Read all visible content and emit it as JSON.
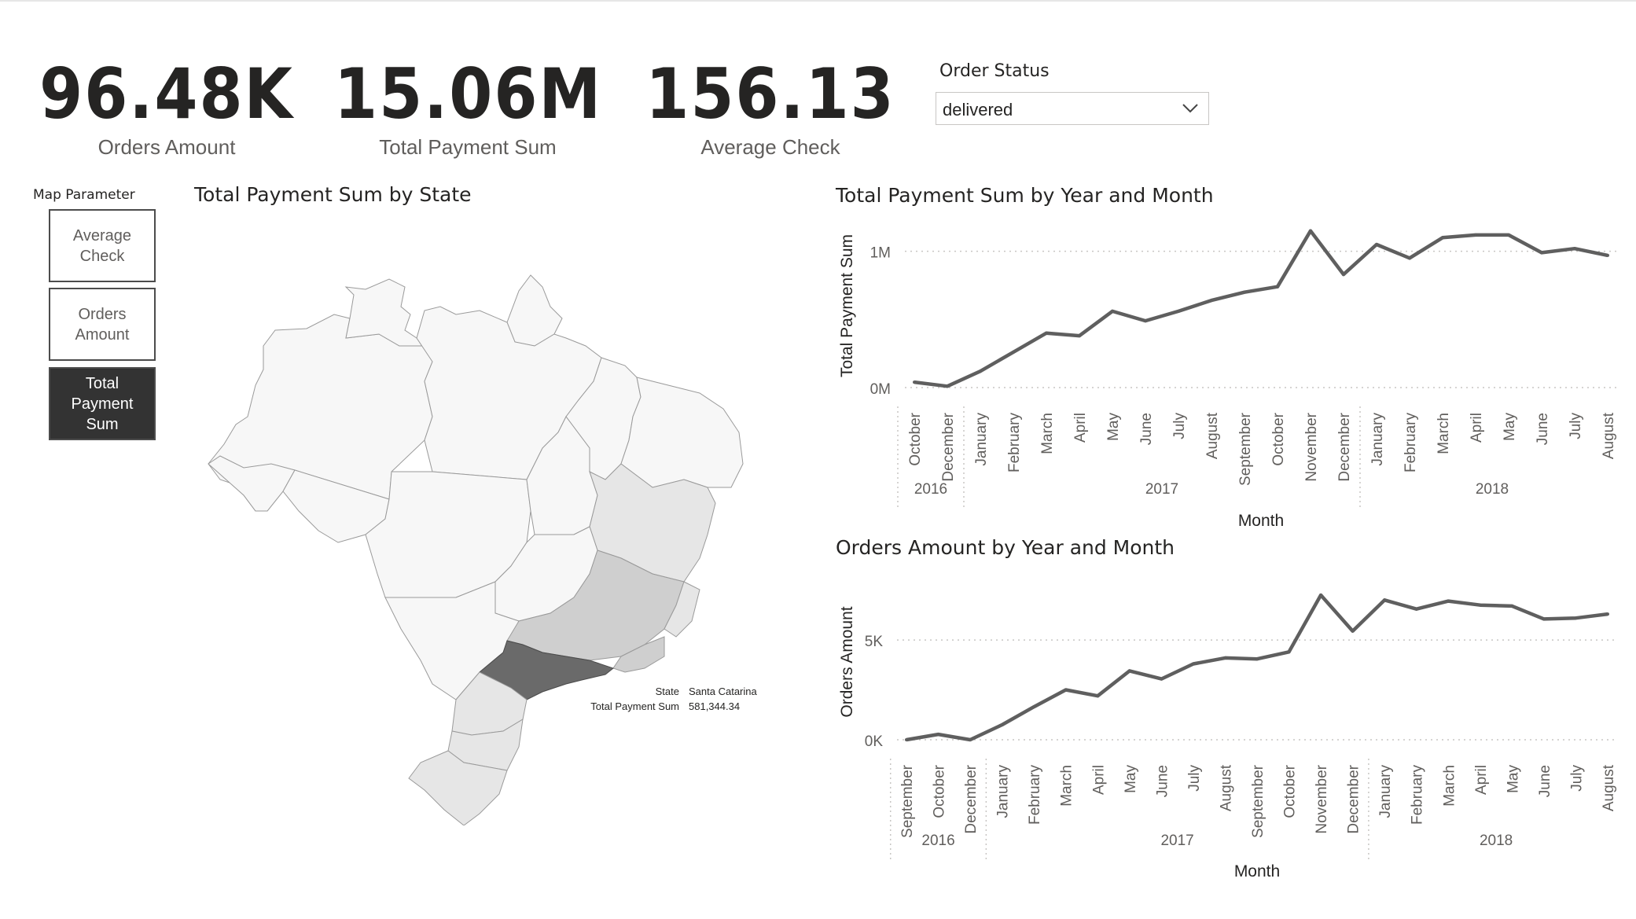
{
  "kpis": [
    {
      "value": "96.48K",
      "label": "Orders Amount"
    },
    {
      "value": "15.06M",
      "label": "Total Payment Sum"
    },
    {
      "value": "156.13",
      "label": "Average Check"
    }
  ],
  "order_status": {
    "title": "Order Status",
    "selected": "delivered",
    "icon": "chevron-down-icon"
  },
  "map_parameter": {
    "title": "Map Parameter",
    "options": [
      "Average Check",
      "Orders Amount",
      "Total Payment Sum"
    ],
    "selected": "Total Payment Sum"
  },
  "map": {
    "title": "Total Payment Sum by State",
    "tooltip": {
      "state_label": "State",
      "state_value": "Santa Catarina",
      "metric_label": "Total Payment Sum",
      "metric_value": "581,344.34"
    },
    "colors": {
      "low": "#f7f7f7",
      "mid": "#e6e6e6",
      "high": "#cfcfcf",
      "max": "#6a6a6a",
      "stroke": "#9a9a9a"
    }
  },
  "chart_data": [
    {
      "type": "line",
      "title": "Total Payment Sum by Year and Month",
      "xlabel": "Month",
      "ylabel": "Total Payment Sum",
      "ytick_labels": [
        "0M",
        "1M"
      ],
      "yticks": [
        0,
        1000000
      ],
      "ylim": [
        0,
        1200000
      ],
      "grid": true,
      "line_color": "#5f5f5f",
      "groups": [
        {
          "year": "2016",
          "months": [
            "October",
            "December"
          ],
          "values": [
            40000,
            10000
          ]
        },
        {
          "year": "2017",
          "months": [
            "January",
            "February",
            "March",
            "April",
            "May",
            "June",
            "July",
            "August",
            "September",
            "October",
            "November",
            "December"
          ],
          "values": [
            120000,
            260000,
            400000,
            380000,
            560000,
            490000,
            560000,
            640000,
            700000,
            740000,
            1150000,
            830000
          ]
        },
        {
          "year": "2018",
          "months": [
            "January",
            "February",
            "March",
            "April",
            "May",
            "June",
            "July",
            "August"
          ],
          "values": [
            1050000,
            950000,
            1100000,
            1120000,
            1120000,
            990000,
            1020000,
            970000
          ]
        }
      ]
    },
    {
      "type": "line",
      "title": "Orders Amount by Year and Month",
      "xlabel": "Month",
      "ylabel": "Orders Amount",
      "ytick_labels": [
        "0K",
        "5K"
      ],
      "yticks": [
        0,
        5000
      ],
      "ylim": [
        0,
        7800
      ],
      "grid": true,
      "line_color": "#5f5f5f",
      "groups": [
        {
          "year": "2016",
          "months": [
            "September",
            "October",
            "December"
          ],
          "values": [
            0,
            270,
            0
          ]
        },
        {
          "year": "2017",
          "months": [
            "January",
            "February",
            "March",
            "April",
            "May",
            "June",
            "July",
            "August",
            "September",
            "October",
            "November",
            "December"
          ],
          "values": [
            750,
            1650,
            2500,
            2200,
            3450,
            3050,
            3800,
            4100,
            4050,
            4400,
            7250,
            5450
          ]
        },
        {
          "year": "2018",
          "months": [
            "January",
            "February",
            "March",
            "April",
            "May",
            "June",
            "July",
            "August"
          ],
          "values": [
            7000,
            6550,
            6950,
            6750,
            6700,
            6050,
            6100,
            6300
          ]
        }
      ]
    }
  ]
}
